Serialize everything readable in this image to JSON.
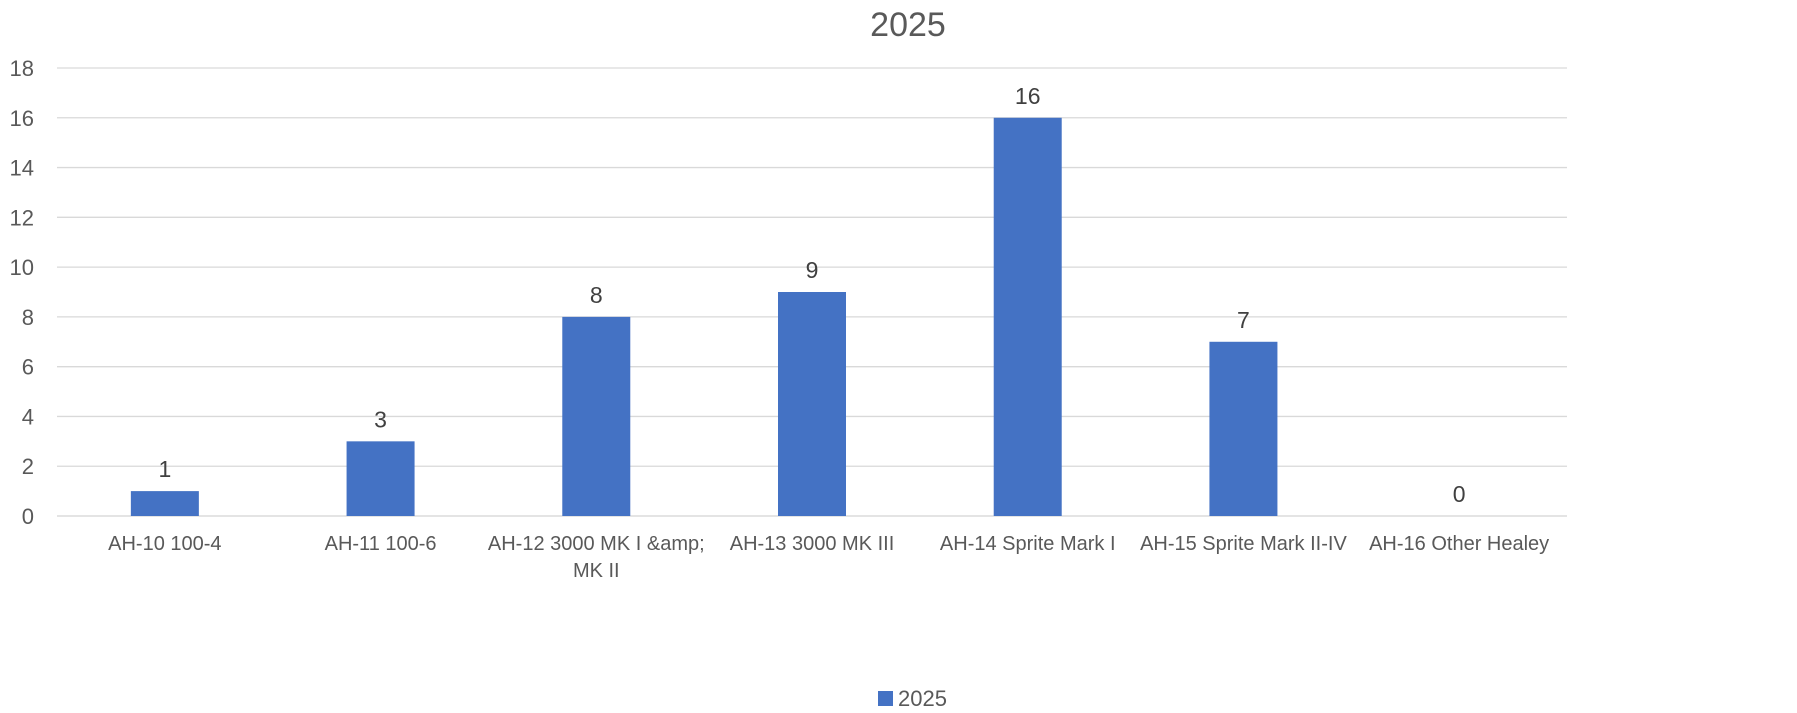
{
  "chart_data": {
    "type": "bar",
    "title": "2025",
    "xlabel": "",
    "ylabel": "",
    "ylim": [
      0,
      18
    ],
    "y_ticks": [
      0,
      2,
      4,
      6,
      8,
      10,
      12,
      14,
      16,
      18
    ],
    "grid": true,
    "legend_position": "bottom",
    "categories": [
      [
        "AH-10 100-4"
      ],
      [
        "AH-11 100-6"
      ],
      [
        "AH-12 3000 MK I &amp;",
        "MK II"
      ],
      [
        "AH-13 3000 MK III"
      ],
      [
        "AH-14 Sprite Mark I"
      ],
      [
        "AH-15 Sprite Mark II-IV"
      ],
      [
        "AH-16 Other Healey"
      ]
    ],
    "series": [
      {
        "name": "2025",
        "color": "#4472c4",
        "values": [
          1,
          3,
          8,
          9,
          16,
          7,
          0
        ]
      }
    ]
  }
}
